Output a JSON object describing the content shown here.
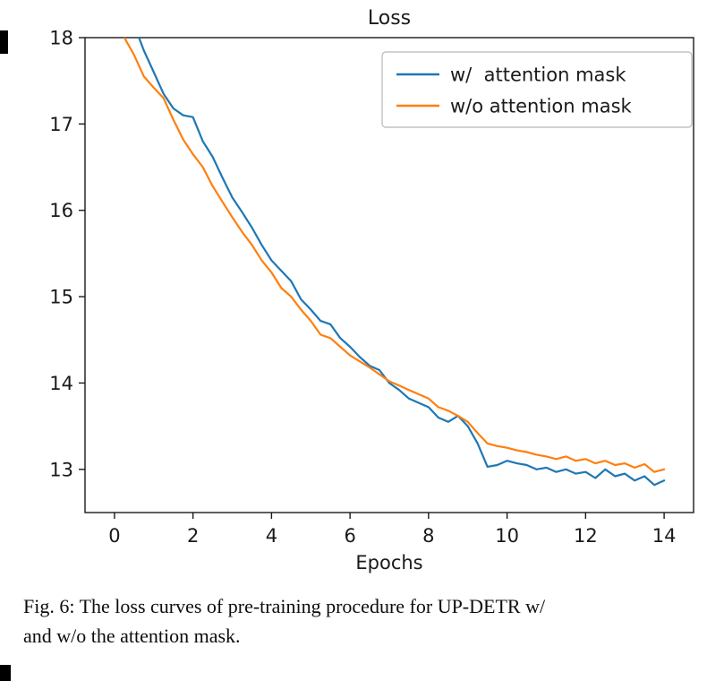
{
  "figure": {
    "caption_line1": "Fig. 6: The loss curves of pre-training procedure for UP-DETR w/",
    "caption_line2": "and w/o the attention mask."
  },
  "chart_data": {
    "type": "line",
    "title": "Loss",
    "xlabel": "Epochs",
    "ylabel": "",
    "xlim": [
      -0.75,
      14.75
    ],
    "ylim": [
      12.5,
      18.0
    ],
    "xticks": [
      0,
      2,
      4,
      6,
      8,
      10,
      12,
      14
    ],
    "yticks": [
      13,
      14,
      15,
      16,
      17,
      18
    ],
    "grid": false,
    "legend_position": "upper right",
    "text_color": "#1a1a1a",
    "frame_color": "#1a1a1a",
    "series": [
      {
        "name": "w/  attention mask",
        "color": "#1f77b4",
        "x": [
          0.5,
          0.75,
          1.0,
          1.25,
          1.5,
          1.75,
          2.0,
          2.25,
          2.5,
          2.75,
          3.0,
          3.25,
          3.5,
          3.75,
          4.0,
          4.25,
          4.5,
          4.75,
          5.0,
          5.25,
          5.5,
          5.75,
          6.0,
          6.25,
          6.5,
          6.75,
          7.0,
          7.25,
          7.5,
          7.75,
          8.0,
          8.25,
          8.5,
          8.75,
          9.0,
          9.25,
          9.5,
          9.75,
          10.0,
          10.25,
          10.5,
          10.75,
          11.0,
          11.25,
          11.5,
          11.75,
          12.0,
          12.25,
          12.5,
          12.75,
          13.0,
          13.25,
          13.5,
          13.75,
          14.0
        ],
        "y": [
          18.15,
          17.85,
          17.6,
          17.35,
          17.18,
          17.1,
          17.08,
          16.8,
          16.62,
          16.38,
          16.15,
          15.98,
          15.8,
          15.6,
          15.42,
          15.3,
          15.18,
          14.97,
          14.85,
          14.72,
          14.68,
          14.52,
          14.42,
          14.3,
          14.2,
          14.15,
          14.0,
          13.92,
          13.82,
          13.77,
          13.72,
          13.6,
          13.55,
          13.62,
          13.5,
          13.3,
          13.03,
          13.05,
          13.1,
          13.07,
          13.05,
          13.0,
          13.02,
          12.97,
          13.0,
          12.95,
          12.97,
          12.9,
          13.0,
          12.92,
          12.95,
          12.87,
          12.92,
          12.82,
          12.87
        ]
      },
      {
        "name": "w/o attention mask",
        "color": "#ff7f0e",
        "x": [
          0.0,
          0.25,
          0.5,
          0.75,
          1.0,
          1.25,
          1.5,
          1.75,
          2.0,
          2.25,
          2.5,
          2.75,
          3.0,
          3.25,
          3.5,
          3.75,
          4.0,
          4.25,
          4.5,
          4.75,
          5.0,
          5.25,
          5.5,
          5.75,
          6.0,
          6.25,
          6.5,
          6.75,
          7.0,
          7.25,
          7.5,
          7.75,
          8.0,
          8.25,
          8.5,
          8.75,
          9.0,
          9.25,
          9.5,
          9.75,
          10.0,
          10.25,
          10.5,
          10.75,
          11.0,
          11.25,
          11.5,
          11.75,
          12.0,
          12.25,
          12.5,
          12.75,
          13.0,
          13.25,
          13.5,
          13.75,
          14.0
        ],
        "y": [
          18.45,
          18.0,
          17.8,
          17.55,
          17.42,
          17.3,
          17.05,
          16.82,
          16.65,
          16.5,
          16.28,
          16.1,
          15.92,
          15.75,
          15.6,
          15.42,
          15.28,
          15.1,
          15.0,
          14.85,
          14.72,
          14.56,
          14.52,
          14.42,
          14.32,
          14.25,
          14.18,
          14.1,
          14.02,
          13.97,
          13.92,
          13.87,
          13.82,
          13.72,
          13.68,
          13.62,
          13.55,
          13.42,
          13.3,
          13.27,
          13.25,
          13.22,
          13.2,
          13.17,
          13.15,
          13.12,
          13.15,
          13.1,
          13.12,
          13.07,
          13.1,
          13.05,
          13.07,
          13.02,
          13.06,
          12.97,
          13.0
        ]
      }
    ]
  }
}
